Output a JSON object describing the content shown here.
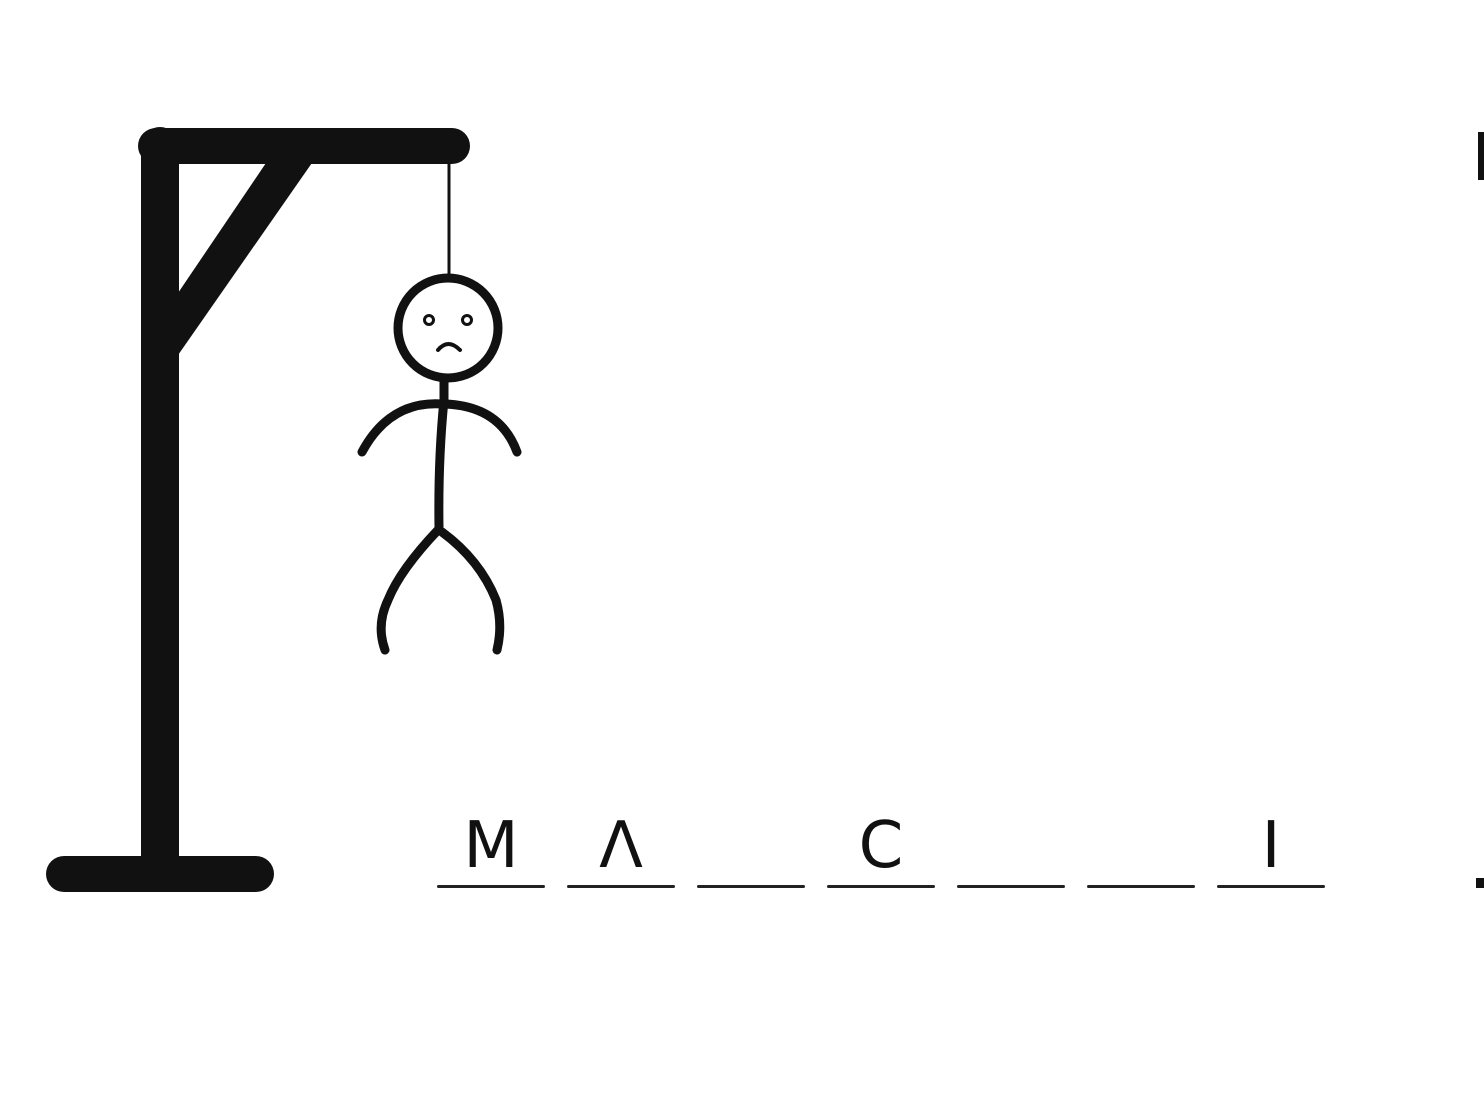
{
  "game": {
    "type": "hangman",
    "wrong_guesses": 6,
    "max_wrong_guesses": 6,
    "body_parts_shown": [
      "head",
      "body",
      "left-arm",
      "right-arm",
      "left-leg",
      "right-leg"
    ]
  },
  "word": {
    "slots": [
      {
        "letter": "M"
      },
      {
        "letter": "Λ"
      },
      {
        "letter": ""
      },
      {
        "letter": "C"
      },
      {
        "letter": ""
      },
      {
        "letter": ""
      },
      {
        "letter": "I"
      }
    ]
  },
  "colors": {
    "ink": "#111111",
    "background": "#ffffff"
  },
  "icons": {
    "gallows": "gallows-icon",
    "figure": "stick-figure-icon",
    "face": "sad-face-icon"
  }
}
